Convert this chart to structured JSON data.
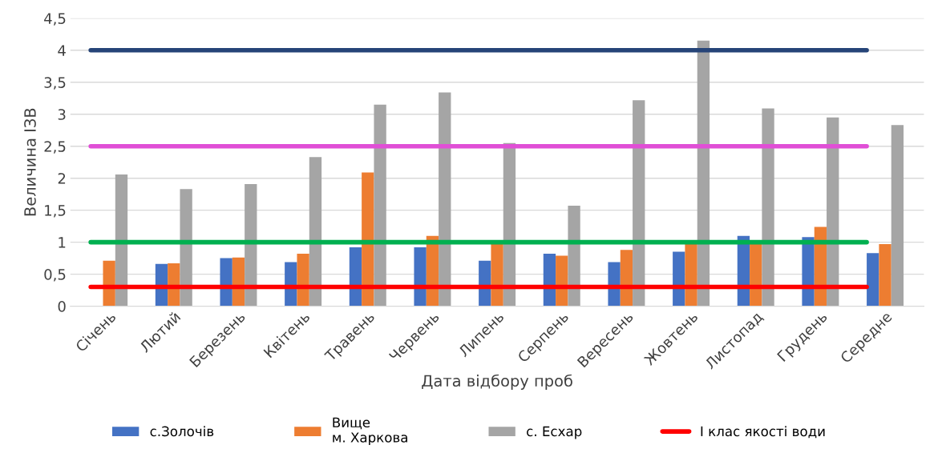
{
  "chart_data": {
    "type": "bar",
    "xlabel": "Дата відбору проб",
    "ylabel": "Величина ІЗВ",
    "categories": [
      "Січень",
      "Лютий",
      "Березень",
      "Квітень",
      "Травень",
      "Червень",
      "Липень",
      "Серпень",
      "Вересень",
      "Жовтень",
      "Листопад",
      "Грудень",
      "Середне"
    ],
    "series": [
      {
        "name": "с.Золочів",
        "color": "#4472c4",
        "values": [
          null,
          0.66,
          0.75,
          0.69,
          0.92,
          0.92,
          0.71,
          0.82,
          0.69,
          0.85,
          1.1,
          1.08,
          0.83
        ]
      },
      {
        "name": "Вище\nм. Харкова",
        "color": "#ed7d31",
        "values": [
          0.71,
          0.67,
          0.76,
          0.82,
          2.09,
          1.1,
          0.99,
          0.79,
          0.88,
          0.99,
          0.99,
          1.24,
          0.97
        ]
      },
      {
        "name": "с. Есхар",
        "color": "#a5a5a5",
        "values": [
          2.06,
          1.83,
          1.91,
          2.33,
          3.15,
          3.34,
          2.55,
          1.57,
          3.22,
          4.15,
          3.09,
          2.95,
          2.83
        ]
      },
      {
        "name": "І клас якості води",
        "type": "line",
        "color": "#ff0000",
        "values": [
          0.3,
          0.3,
          0.3,
          0.3,
          0.3,
          0.3,
          0.3,
          0.3,
          0.3,
          0.3,
          0.3,
          0.3,
          0.3
        ]
      },
      {
        "type": "line",
        "color": "#00b050",
        "values": [
          1,
          1,
          1,
          1,
          1,
          1,
          1,
          1,
          1,
          1,
          1,
          1,
          1
        ]
      },
      {
        "type": "line",
        "color": "#e04fd6",
        "values": [
          2.5,
          2.5,
          2.5,
          2.5,
          2.5,
          2.5,
          2.5,
          2.5,
          2.5,
          2.5,
          2.5,
          2.5,
          2.5
        ]
      },
      {
        "type": "line",
        "color": "#264478",
        "values": [
          4,
          4,
          4,
          4,
          4,
          4,
          4,
          4,
          4,
          4,
          4,
          4,
          4
        ]
      }
    ],
    "ylim": [
      0,
      4.5
    ],
    "yticks": [
      {
        "value": 0,
        "label": "0"
      },
      {
        "value": 0.5,
        "label": "0,5"
      },
      {
        "value": 1,
        "label": "1"
      },
      {
        "value": 1.5,
        "label": "1,5"
      },
      {
        "value": 2,
        "label": "2"
      },
      {
        "value": 2.5,
        "label": "2,5"
      },
      {
        "value": 3,
        "label": "3"
      },
      {
        "value": 3.5,
        "label": "3,5"
      },
      {
        "value": 4,
        "label": "4"
      },
      {
        "value": 4.5,
        "label": "4,5"
      }
    ],
    "grid": "y",
    "legend": "bottom"
  }
}
